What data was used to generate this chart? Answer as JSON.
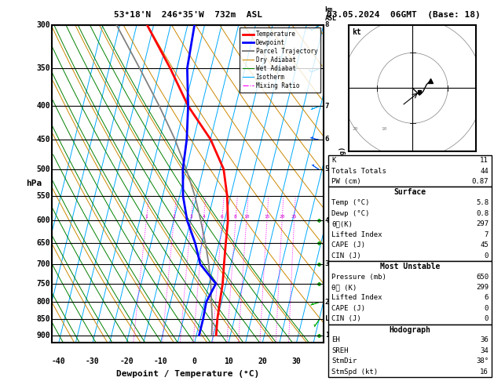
{
  "title_left": "53°18'N  246°35'W  732m  ASL",
  "title_right": "03.05.2024  06GMT  (Base: 18)",
  "xlabel": "Dewpoint / Temperature (°C)",
  "pressure_levels": [
    300,
    350,
    400,
    450,
    500,
    550,
    600,
    650,
    700,
    750,
    800,
    850,
    900
  ],
  "xlim": [
    -42,
    38
  ],
  "pmin": 300,
  "pmax": 925,
  "km_label_map": {
    "300": "8",
    "400": "7",
    "450": "6",
    "500": "5",
    "600": "4",
    "700": "3",
    "800": "2",
    "850": "LCL",
    "900": "1"
  },
  "temp_profile": {
    "pressure": [
      300,
      350,
      400,
      450,
      500,
      550,
      600,
      650,
      700,
      750,
      800,
      850,
      900
    ],
    "temp": [
      -37,
      -27,
      -19,
      -10,
      -4,
      -1,
      1,
      2,
      3,
      4,
      4.5,
      5,
      5.8
    ]
  },
  "dewp_profile": {
    "pressure": [
      300,
      350,
      400,
      450,
      500,
      550,
      600,
      650,
      700,
      750,
      800,
      850,
      900
    ],
    "dewp": [
      -23,
      -22,
      -19,
      -17,
      -16,
      -14,
      -11,
      -7,
      -4,
      2,
      0.5,
      0.8,
      0.8
    ]
  },
  "parcel_trajectory": {
    "pressure": [
      900,
      850,
      800,
      750,
      700,
      650,
      600,
      550,
      500,
      450,
      400,
      350,
      300
    ],
    "temp": [
      4.5,
      3.5,
      2.0,
      0.5,
      -1.5,
      -4.0,
      -7.0,
      -10.5,
      -15.0,
      -20.5,
      -27.5,
      -36.0,
      -46.0
    ]
  },
  "colors": {
    "temperature": "#ff0000",
    "dewpoint": "#0000ff",
    "parcel": "#808080",
    "dry_adiabat": "#cc8800",
    "wet_adiabat": "#008000",
    "isotherm": "#00aaff",
    "mixing_ratio": "#ff00ff",
    "background": "#ffffff",
    "grid": "#000000"
  },
  "legend_items": [
    {
      "label": "Temperature",
      "color": "#ff0000",
      "lw": 2.0,
      "ls": "-"
    },
    {
      "label": "Dewpoint",
      "color": "#0000ff",
      "lw": 2.0,
      "ls": "-"
    },
    {
      "label": "Parcel Trajectory",
      "color": "#808080",
      "lw": 1.5,
      "ls": "-"
    },
    {
      "label": "Dry Adiabat",
      "color": "#cc8800",
      "lw": 0.8,
      "ls": "-"
    },
    {
      "label": "Wet Adiabat",
      "color": "#008000",
      "lw": 0.8,
      "ls": "-"
    },
    {
      "label": "Isotherm",
      "color": "#00aaff",
      "lw": 0.8,
      "ls": "-"
    },
    {
      "label": "Mixing Ratio",
      "color": "#ff00ff",
      "lw": 0.8,
      "ls": "-."
    }
  ],
  "mixing_ratio_lines": [
    1,
    2,
    3,
    4,
    6,
    8,
    10,
    15,
    20,
    25
  ],
  "mixing_ratio_labels": [
    "1",
    "2",
    "3",
    "4",
    "6",
    "8",
    "10",
    "15",
    "20",
    "25"
  ],
  "skew_factor": 23,
  "stats": {
    "K": 11,
    "Totals_Totals": 44,
    "PW_cm": 0.87,
    "Surface_Temp": 5.8,
    "Surface_Dewp": 0.8,
    "Surface_theta_e": 297,
    "Surface_LI": 7,
    "Surface_CAPE": 45,
    "Surface_CIN": 0,
    "MU_Pressure": 650,
    "MU_theta_e": 299,
    "MU_LI": 6,
    "MU_CAPE": 0,
    "MU_CIN": 0,
    "EH": 36,
    "SREH": 34,
    "StmDir": 38,
    "StmSpd": 16
  }
}
